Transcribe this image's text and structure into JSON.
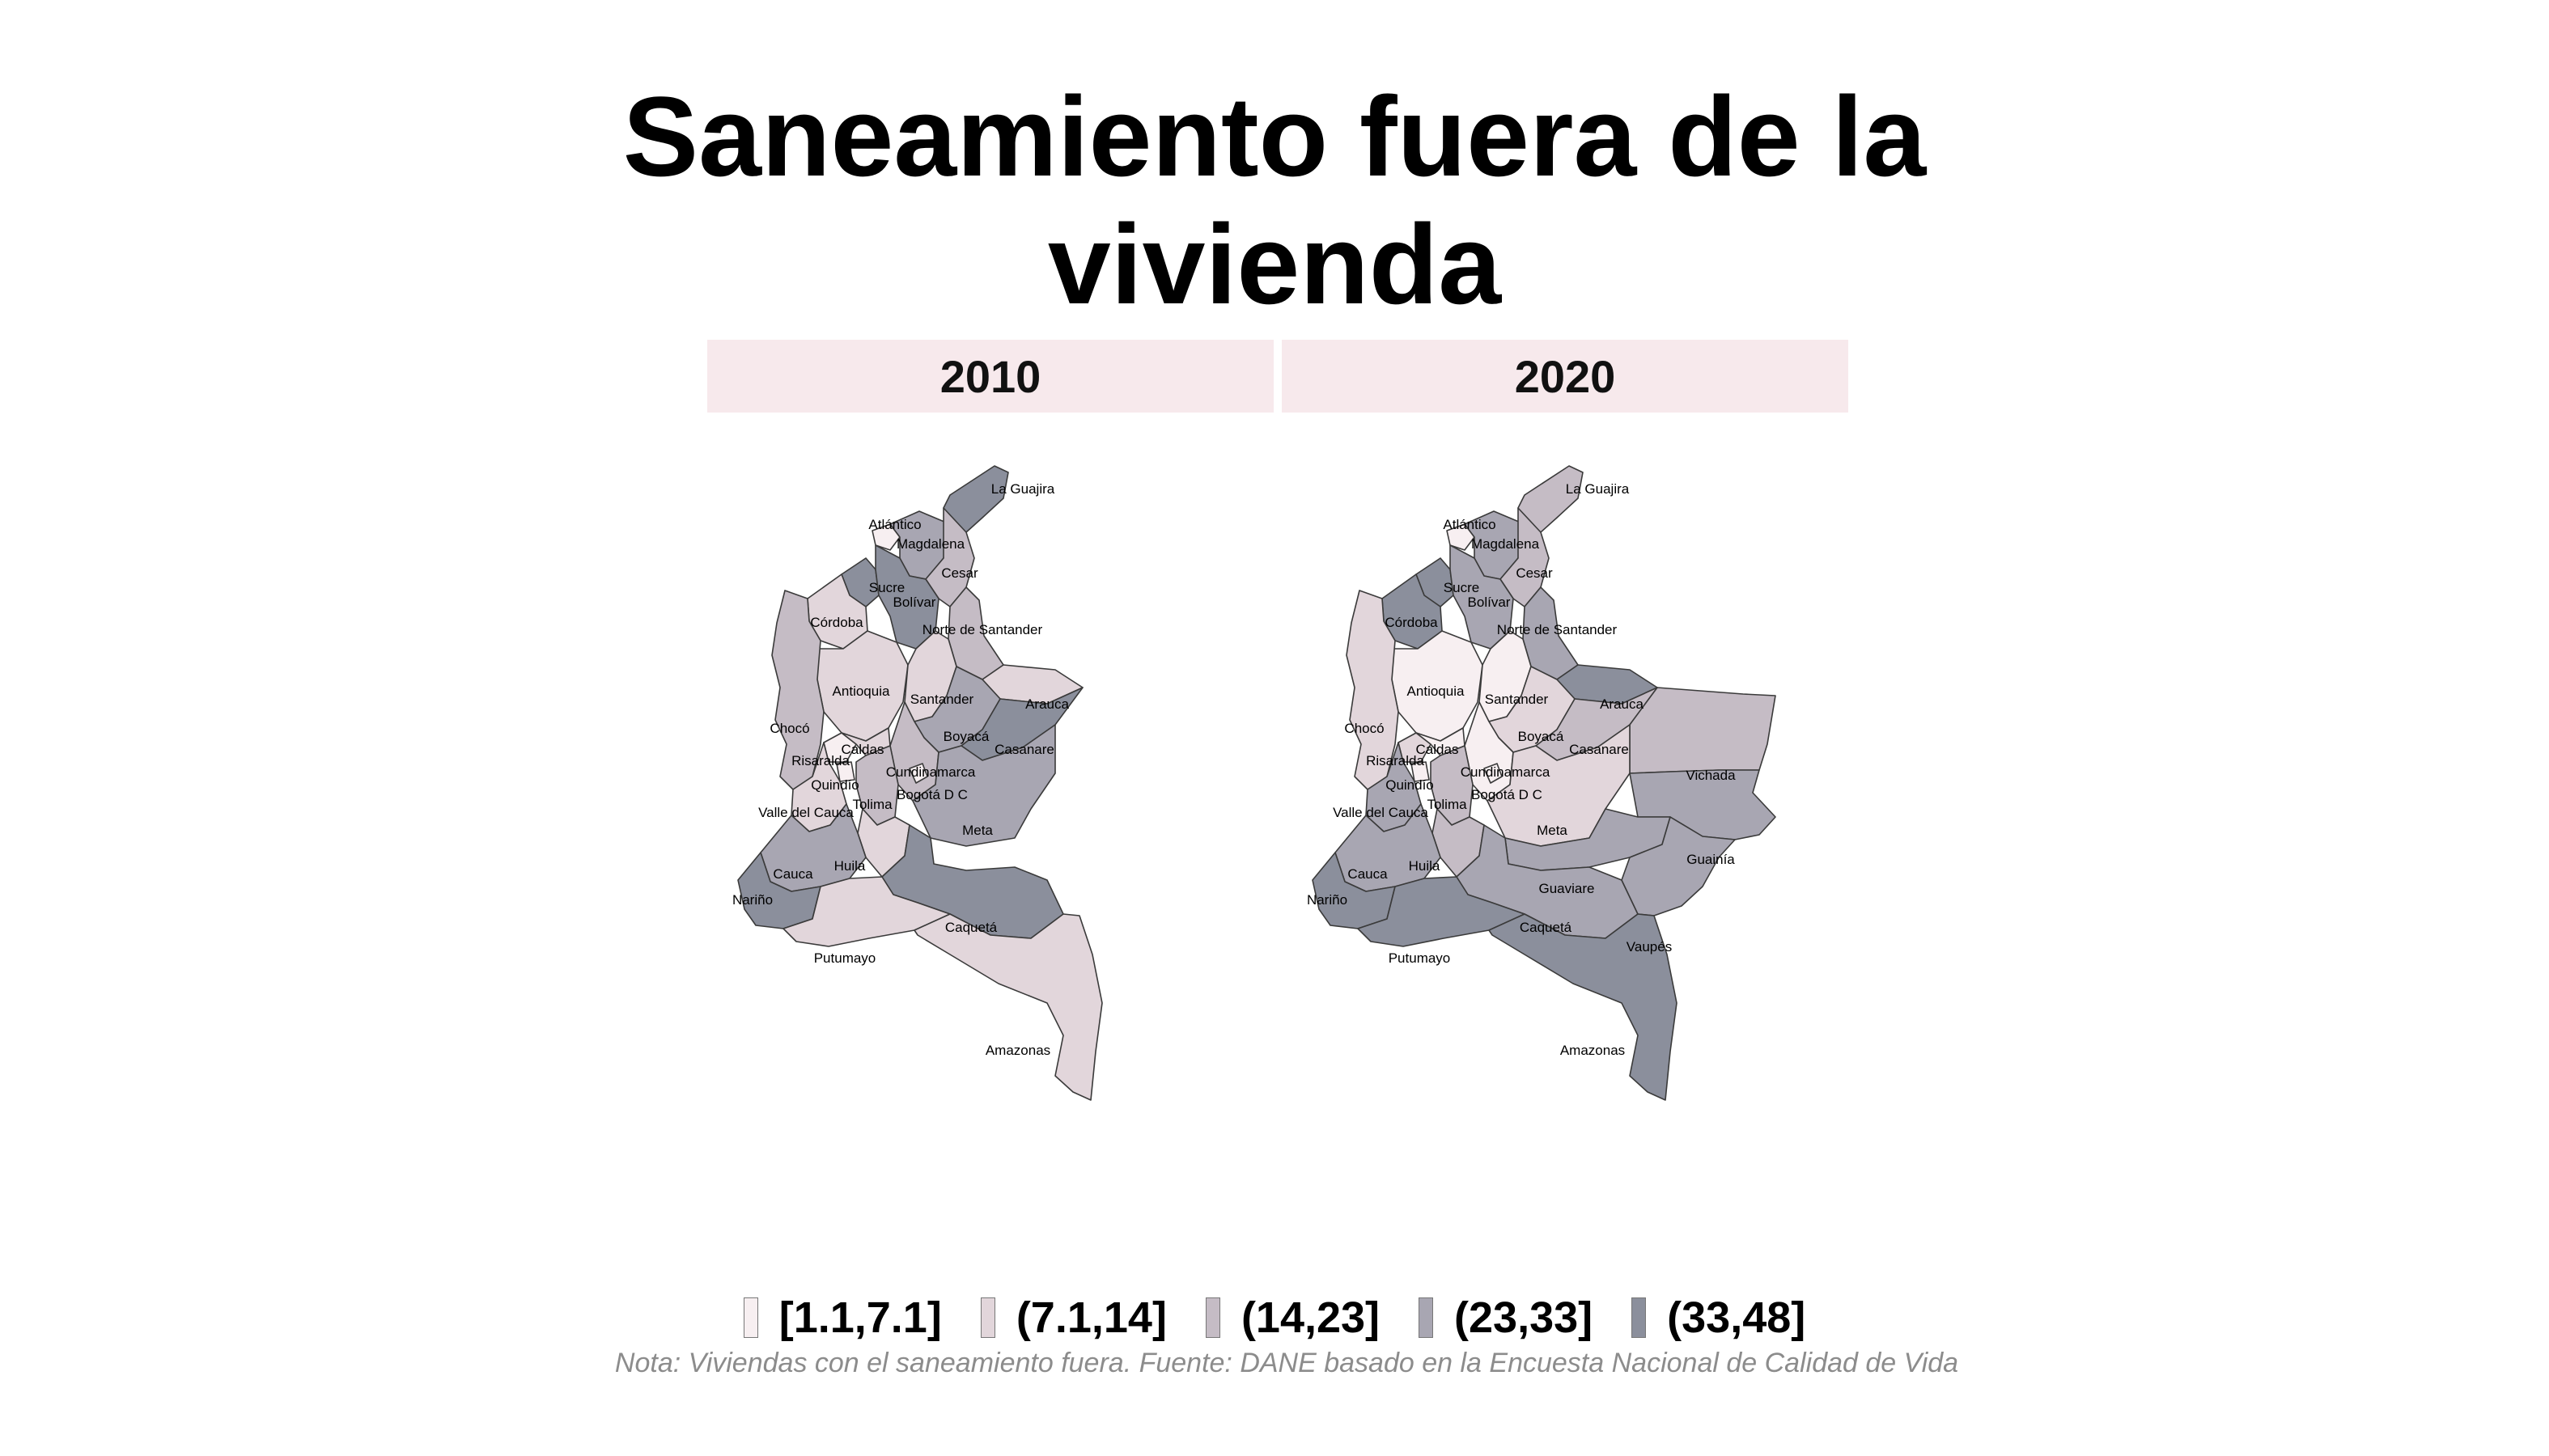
{
  "title": {
    "line1": "Saneamiento fuera de la",
    "line2": "vivienda"
  },
  "panels": [
    {
      "label": "2010",
      "departments": [
        {
          "name": "La Guajira",
          "cls": 4
        },
        {
          "name": "Atlántico",
          "cls": 0
        },
        {
          "name": "Magdalena",
          "cls": 3
        },
        {
          "name": "Cesar",
          "cls": 2
        },
        {
          "name": "Sucre",
          "cls": 4
        },
        {
          "name": "Bolívar",
          "cls": 4
        },
        {
          "name": "Córdoba",
          "cls": 1
        },
        {
          "name": "Norte de Santander",
          "cls": 2
        },
        {
          "name": "Antioquia",
          "cls": 1
        },
        {
          "name": "Santander",
          "cls": 1
        },
        {
          "name": "Arauca",
          "cls": 1
        },
        {
          "name": "Chocó",
          "cls": 2
        },
        {
          "name": "Boyacá",
          "cls": 3
        },
        {
          "name": "Casanare",
          "cls": 4
        },
        {
          "name": "Risaralda",
          "cls": 0
        },
        {
          "name": "Caldas",
          "cls": 1
        },
        {
          "name": "Cundinamarca",
          "cls": 2
        },
        {
          "name": "Quindío",
          "cls": 0
        },
        {
          "name": "Bogotá D C",
          "cls": 0
        },
        {
          "name": "Tolima",
          "cls": 2
        },
        {
          "name": "Valle del Cauca",
          "cls": 1
        },
        {
          "name": "Meta",
          "cls": 3
        },
        {
          "name": "Huila",
          "cls": 1
        },
        {
          "name": "Cauca",
          "cls": 3
        },
        {
          "name": "Nariño",
          "cls": 4
        },
        {
          "name": "Caquetá",
          "cls": 4
        },
        {
          "name": "Putumayo",
          "cls": 1
        },
        {
          "name": "Amazonas",
          "cls": 1
        }
      ]
    },
    {
      "label": "2020",
      "departments": [
        {
          "name": "La Guajira",
          "cls": 2
        },
        {
          "name": "Atlántico",
          "cls": 0
        },
        {
          "name": "Magdalena",
          "cls": 3
        },
        {
          "name": "Cesar",
          "cls": 2
        },
        {
          "name": "Sucre",
          "cls": 4
        },
        {
          "name": "Bolívar",
          "cls": 3
        },
        {
          "name": "Córdoba",
          "cls": 4
        },
        {
          "name": "Norte de Santander",
          "cls": 3
        },
        {
          "name": "Antioquia",
          "cls": 0
        },
        {
          "name": "Santander",
          "cls": 0
        },
        {
          "name": "Arauca",
          "cls": 4
        },
        {
          "name": "Chocó",
          "cls": 1
        },
        {
          "name": "Boyacá",
          "cls": 1
        },
        {
          "name": "Casanare",
          "cls": 2
        },
        {
          "name": "Vichada",
          "cls": 2
        },
        {
          "name": "Risaralda",
          "cls": 1
        },
        {
          "name": "Caldas",
          "cls": 0
        },
        {
          "name": "Cundinamarca",
          "cls": 0
        },
        {
          "name": "Quindío",
          "cls": 0
        },
        {
          "name": "Bogotá D C",
          "cls": 0
        },
        {
          "name": "Tolima",
          "cls": 2
        },
        {
          "name": "Valle del Cauca",
          "cls": 3
        },
        {
          "name": "Meta",
          "cls": 1
        },
        {
          "name": "Guainía",
          "cls": 3
        },
        {
          "name": "Huila",
          "cls": 2
        },
        {
          "name": "Cauca",
          "cls": 3
        },
        {
          "name": "Guaviare",
          "cls": 3
        },
        {
          "name": "Nariño",
          "cls": 4
        },
        {
          "name": "Caquetá",
          "cls": 3
        },
        {
          "name": "Vaupés",
          "cls": 3
        },
        {
          "name": "Putumayo",
          "cls": 4
        },
        {
          "name": "Amazonas",
          "cls": 4
        }
      ]
    }
  ],
  "legend": {
    "items": [
      {
        "label": "[1.1,7.1]",
        "color": "#f7eff1"
      },
      {
        "label": "(7.1,14]",
        "color": "#e2d6db"
      },
      {
        "label": "(14,23]",
        "color": "#c5bcc5"
      },
      {
        "label": "(23,33]",
        "color": "#a8a6b2"
      },
      {
        "label": "(33,48]",
        "color": "#8b8f9c"
      }
    ]
  },
  "note": "Nota: Viviendas con el saneamiento fuera. Fuente: DANE basado en la Encuesta Nacional de Calidad de Vida"
}
